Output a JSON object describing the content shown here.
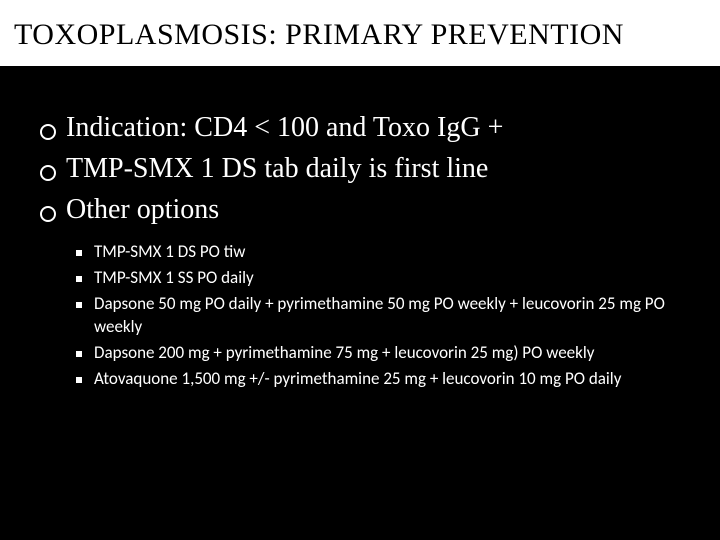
{
  "title": "TOXOPLASMOSIS: PRIMARY PREVENTION",
  "mainItems": [
    "Indication: CD4 < 100 and Toxo IgG +",
    "TMP-SMX 1 DS tab daily is first line",
    "Other options"
  ],
  "subItems": [
    "TMP-SMX 1 DS PO tiw",
    "TMP-SMX 1 SS PO daily",
    "Dapsone 50 mg PO daily + pyrimethamine 50 mg PO weekly + leucovorin 25 mg PO weekly",
    "Dapsone 200 mg + pyrimethamine 75 mg + leucovorin 25 mg) PO weekly",
    "Atovaquone 1,500 mg +/- pyrimethamine 25 mg + leucovorin 10 mg PO daily"
  ],
  "styling": {
    "slide_width": 720,
    "slide_height": 540,
    "background_color": "#000000",
    "title_band_bg": "#ffffff",
    "title_text_color": "#000000",
    "body_text_color": "#ffffff",
    "title_fontsize": 30,
    "main_fontsize": 28,
    "sub_fontsize": 17,
    "title_font_family": "Georgia, serif",
    "body_font_family": "Georgia, serif",
    "sub_font_family": "Segoe UI, sans-serif",
    "main_bullet_shape": "hollow-circle",
    "main_bullet_size": 16,
    "main_bullet_border": 2,
    "sub_bullet_shape": "filled-square",
    "sub_bullet_size": 6
  }
}
